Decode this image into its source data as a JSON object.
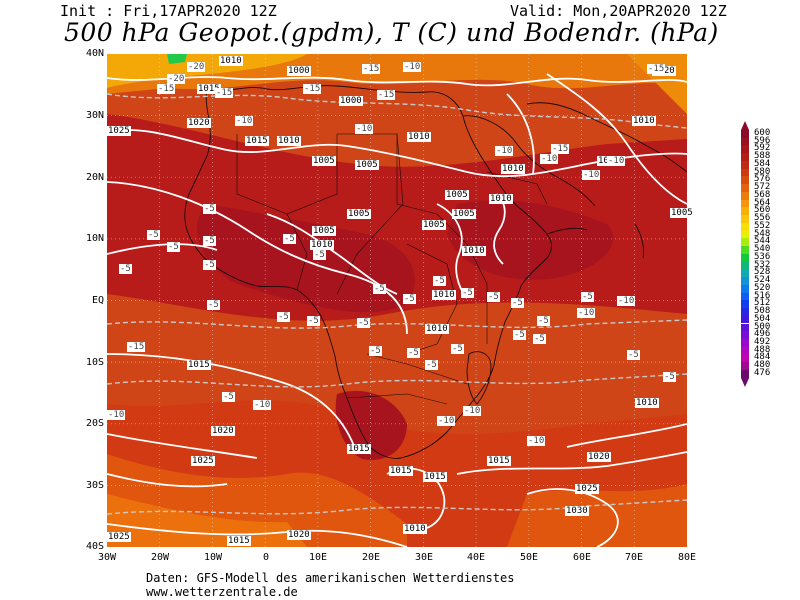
{
  "header": {
    "init": "Init : Fri,17APR2020 12Z",
    "valid": "Valid: Mon,20APR2020 12Z",
    "title": "500 hPa Geopot.(gpdm), T (C) und Bodendr. (hPa)"
  },
  "axes": {
    "lat_labels": [
      "40N",
      "30N",
      "20N",
      "10N",
      "EQ",
      "10S",
      "20S",
      "30S",
      "40S"
    ],
    "lon_labels": [
      "30W",
      "20W",
      "10W",
      "0",
      "10E",
      "20E",
      "30E",
      "40E",
      "50E",
      "60E",
      "70E",
      "80E"
    ]
  },
  "legend": {
    "values": [
      "600",
      "596",
      "592",
      "588",
      "584",
      "580",
      "576",
      "572",
      "568",
      "564",
      "560",
      "556",
      "552",
      "548",
      "544",
      "540",
      "536",
      "532",
      "528",
      "524",
      "520",
      "516",
      "512",
      "508",
      "504",
      "500",
      "496",
      "492",
      "488",
      "484",
      "480",
      "476"
    ],
    "colors": [
      "#8a0a2a",
      "#9a1022",
      "#a8161c",
      "#b41e18",
      "#c02a14",
      "#cc3a12",
      "#d84c10",
      "#e4620e",
      "#ee7c0c",
      "#f4960a",
      "#f8b008",
      "#fac806",
      "#f8de04",
      "#e8f004",
      "#a8ec10",
      "#50dc20",
      "#14c83c",
      "#10b878",
      "#10aab4",
      "#1094d8",
      "#1078ec",
      "#105cf4",
      "#1040ee",
      "#2828e4",
      "#4018dc",
      "#5c10d8",
      "#7a0cd4",
      "#9a08cc",
      "#b006c0",
      "#c004b0",
      "#a00890",
      "#6a0a6a"
    ]
  },
  "isobars": [
    "1010",
    "1000",
    "1015",
    "1020",
    "1000",
    "1010",
    "1015",
    "1010",
    "1020",
    "1025",
    "1010",
    "1005",
    "1005",
    "1010",
    "1005",
    "1005",
    "1005",
    "1010",
    "1005",
    "1005",
    "1010",
    "1010",
    "1010",
    "1015",
    "1010",
    "1015",
    "1020",
    "1025",
    "1015",
    "1015",
    "1015",
    "1020",
    "1025",
    "1030",
    "1010",
    "1025",
    "1020",
    "1015",
    "1010",
    "1005",
    "1010"
  ],
  "temps": [
    "-20",
    "-20",
    "-15",
    "-15",
    "-15",
    "-10",
    "-15",
    "-10",
    "-15",
    "-15",
    "-15",
    "-10",
    "-10",
    "-10",
    "-10",
    "-5",
    "-5",
    "-5",
    "-5",
    "-5",
    "-5",
    "-5",
    "-5",
    "-5",
    "-5",
    "-5",
    "-5",
    "-5",
    "-5",
    "-5",
    "-5",
    "-5",
    "-5",
    "-5",
    "-5",
    "-5",
    "-5",
    "-5",
    "-5",
    "-5",
    "-5",
    "-5",
    "-5",
    "-5",
    "-10",
    "-10",
    "-10",
    "-10",
    "-10",
    "-10",
    "-10",
    "-10",
    "-15"
  ],
  "footer": {
    "line1": "Daten: GFS-Modell des amerikanischen Wetterdienstes",
    "line2": "www.wetterzentrale.de"
  }
}
